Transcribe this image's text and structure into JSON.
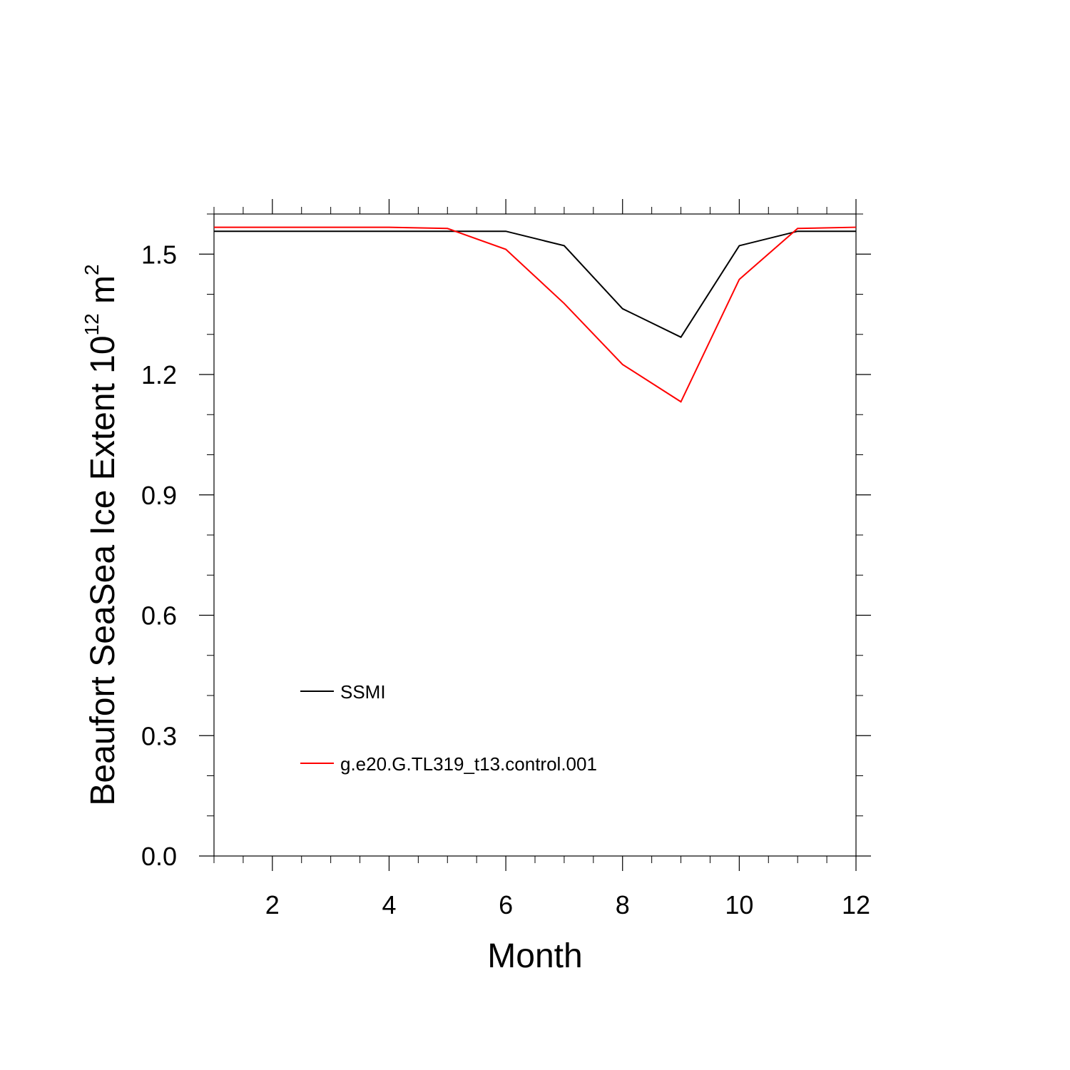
{
  "chart_data": {
    "type": "line",
    "title": "",
    "xlabel": "Month",
    "ylabel": {
      "text": "Beaufort SeaSea Ice Extent 10",
      "superscript_exp": "12",
      "unit": " m",
      "superscript_unit": "2"
    },
    "xlim": [
      1,
      12
    ],
    "ylim": [
      0.0,
      1.6
    ],
    "x_ticks": [
      2,
      4,
      6,
      8,
      10,
      12
    ],
    "x_tick_labels": [
      "2",
      "4",
      "6",
      "8",
      "10",
      "12"
    ],
    "y_ticks": [
      0.0,
      0.3,
      0.6,
      0.9,
      1.2,
      1.5
    ],
    "y_tick_labels": [
      "0.0",
      "0.3",
      "0.6",
      "0.9",
      "1.2",
      "1.5"
    ],
    "grid": false,
    "legend_position": "lower-left",
    "x": [
      1,
      2,
      3,
      4,
      5,
      6,
      7,
      8,
      9,
      10,
      11,
      12
    ],
    "series": [
      {
        "name": "SSMI",
        "color": "#000000",
        "values": [
          1.557,
          1.557,
          1.557,
          1.557,
          1.557,
          1.557,
          1.521,
          1.364,
          1.293,
          1.521,
          1.557,
          1.557
        ]
      },
      {
        "name": "g.e20.G.TL319_t13.control.001",
        "color": "#ff0000",
        "values": [
          1.567,
          1.567,
          1.567,
          1.567,
          1.564,
          1.512,
          1.377,
          1.225,
          1.132,
          1.437,
          1.564,
          1.567
        ]
      }
    ]
  }
}
